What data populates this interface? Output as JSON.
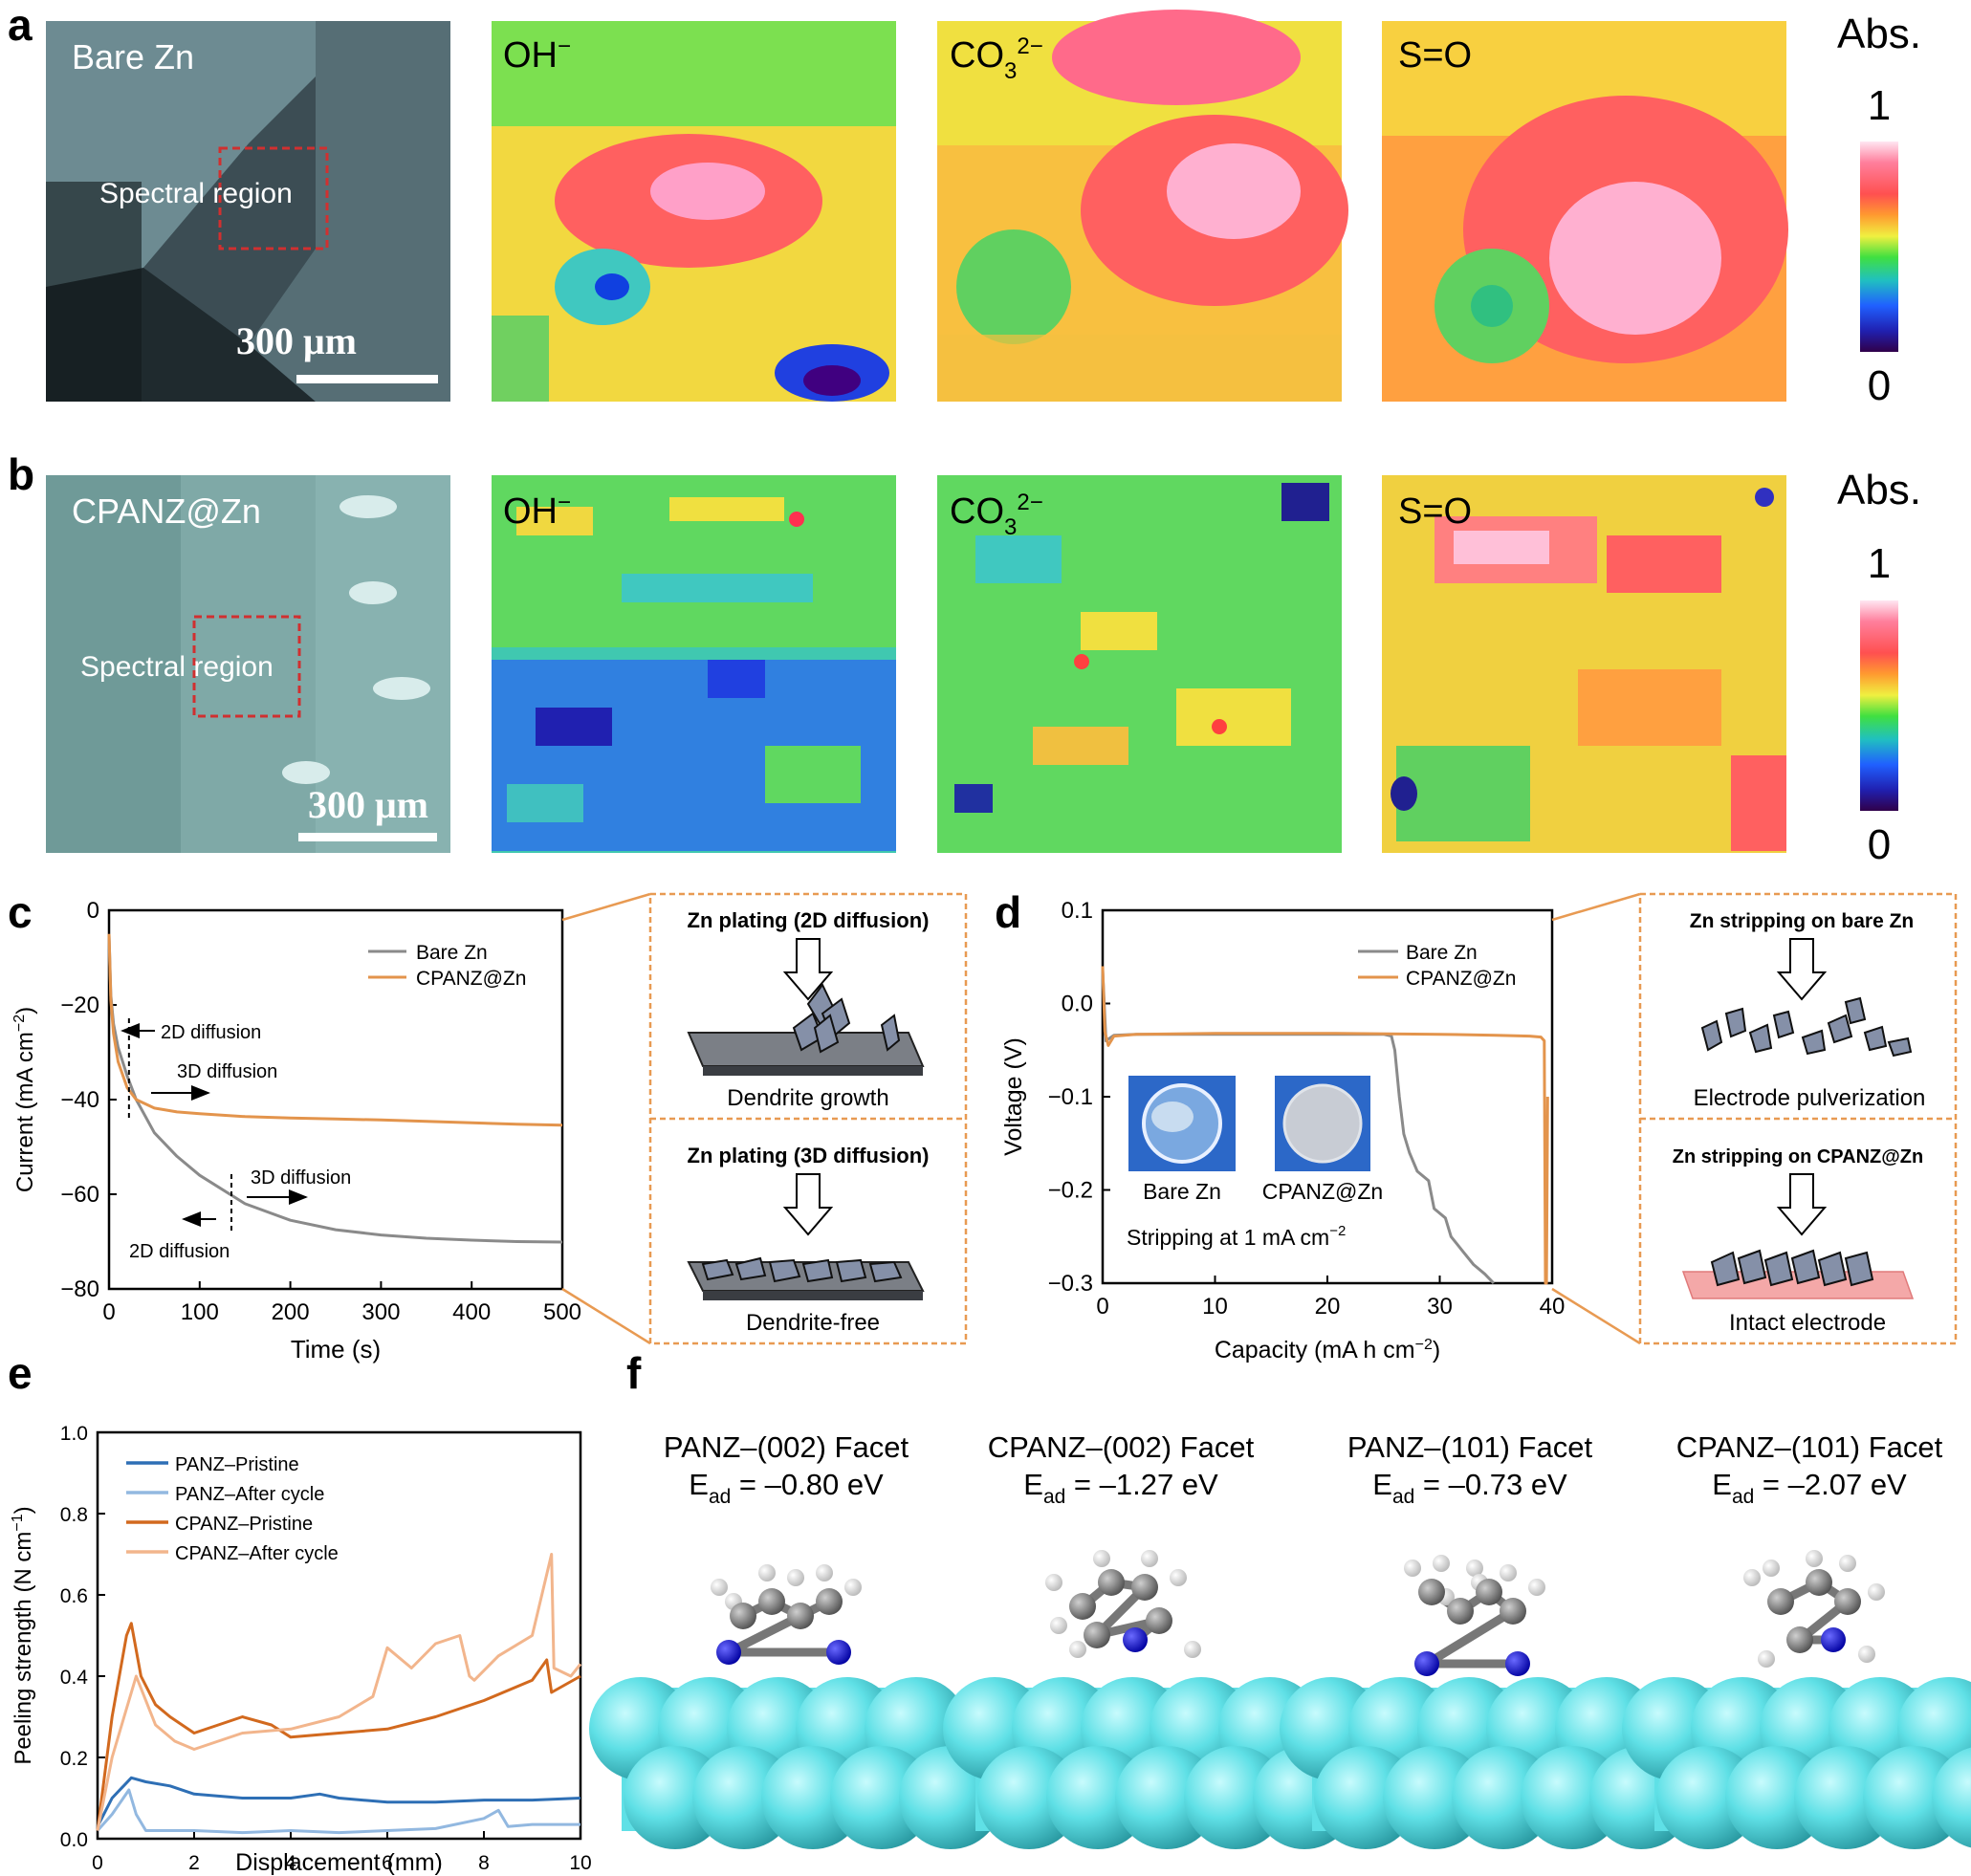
{
  "panel_letters": {
    "a": "a",
    "b": "b",
    "c": "c",
    "d": "d",
    "e": "e",
    "f": "f"
  },
  "colors": {
    "bare_line": "#8a8a8a",
    "cpanz_line": "#e3944c",
    "panz_pristine": "#2e6fb5",
    "panz_after": "#92b8e0",
    "cpanz_pristine": "#d2691e",
    "cpanz_after": "#f2b58c",
    "zn_atom": "#5fe0e6",
    "dashed_box": "#e89a52"
  },
  "panel_a": {
    "micrograph_label": "Bare Zn",
    "region_label": "Spectral region",
    "scale_bar": "300 μm",
    "maps": [
      {
        "label": "OH",
        "sup": "−",
        "sub": ""
      },
      {
        "label": "CO",
        "sub": "3",
        "sup": "2−"
      },
      {
        "label": "S=O",
        "sub": "",
        "sup": ""
      }
    ],
    "colorbar": {
      "title": "Abs.",
      "max": "1",
      "min": "0"
    }
  },
  "panel_b": {
    "micrograph_label": "CPANZ@Zn",
    "region_label": "Spectral region",
    "scale_bar": "300 μm",
    "maps": [
      {
        "label": "OH",
        "sup": "−",
        "sub": ""
      },
      {
        "label": "CO",
        "sub": "3",
        "sup": "2−"
      },
      {
        "label": "S=O",
        "sub": "",
        "sup": ""
      }
    ],
    "colorbar": {
      "title": "Abs.",
      "max": "1",
      "min": "0"
    }
  },
  "panel_c": {
    "xlabel": "Time (s)",
    "ylabel_main": "Current (mA cm",
    "ylabel_sup": "−2",
    "ylabel_end": ")",
    "xticks": [
      "0",
      "100",
      "200",
      "300",
      "400",
      "500"
    ],
    "yticks": [
      "0",
      "−20",
      "−40",
      "−60",
      "−80"
    ],
    "legend": [
      "Bare Zn",
      "CPANZ@Zn"
    ],
    "annotations": {
      "top_2d": "2D diffusion",
      "top_3d": "3D diffusion",
      "bottom_3d": "3D diffusion",
      "bottom_2d": "2D diffusion"
    },
    "schematic": {
      "top_title": "Zn plating (2D diffusion)",
      "top_caption": "Dendrite growth",
      "bottom_title": "Zn plating (3D diffusion)",
      "bottom_caption": "Dendrite-free"
    }
  },
  "panel_d": {
    "xlabel_main": "Capacity (mA h cm",
    "xlabel_sup": "−2",
    "xlabel_end": ")",
    "ylabel": "Voltage (V)",
    "xticks": [
      "0",
      "10",
      "20",
      "30",
      "40"
    ],
    "yticks": [
      "0.1",
      "0.0",
      "−0.1",
      "−0.2",
      "−0.3"
    ],
    "legend": [
      "Bare Zn",
      "CPANZ@Zn"
    ],
    "photo_labels": [
      "Bare Zn",
      "CPANZ@Zn"
    ],
    "note_main": "Stripping at 1 mA cm",
    "note_sup": "−2",
    "schematic": {
      "top_title": "Zn stripping on bare Zn",
      "top_caption": "Electrode pulverization",
      "bottom_title": "Zn stripping on CPANZ@Zn",
      "bottom_caption": "Intact electrode"
    }
  },
  "panel_e": {
    "xlabel": "Displacement (mm)",
    "ylabel_main": "Peeling strength (N cm",
    "ylabel_sup": "−1",
    "ylabel_end": ")",
    "xticks": [
      "0",
      "2",
      "4",
      "6",
      "8",
      "10"
    ],
    "yticks": [
      "0.0",
      "0.2",
      "0.4",
      "0.6",
      "0.8",
      "1.0"
    ],
    "legend": [
      "PANZ–Pristine",
      "PANZ–After cycle",
      "CPANZ–Pristine",
      "CPANZ–After cycle"
    ]
  },
  "panel_f": {
    "structures": [
      {
        "facet": "PANZ–(002) Facet",
        "e_pre": "E",
        "e_sub": "ad",
        "e_value": " = –0.80 eV"
      },
      {
        "facet": "CPANZ–(002) Facet",
        "e_pre": "E",
        "e_sub": "ad",
        "e_value": " = –1.27 eV"
      },
      {
        "facet": "PANZ–(101) Facet",
        "e_pre": "E",
        "e_sub": "ad",
        "e_value": " = –0.73 eV"
      },
      {
        "facet": "CPANZ–(101) Facet",
        "e_pre": "E",
        "e_sub": "ad",
        "e_value": " = –2.07 eV"
      }
    ]
  },
  "chart_data": [
    {
      "type": "line",
      "panel": "c",
      "xlabel": "Time (s)",
      "ylabel": "Current (mA cm−2)",
      "xlim": [
        0,
        500
      ],
      "ylim": [
        -80,
        0
      ],
      "legend_position": "top-right",
      "series": [
        {
          "name": "Bare Zn",
          "x": [
            0,
            2,
            5,
            10,
            20,
            30,
            50,
            75,
            100,
            150,
            200,
            250,
            300,
            350,
            400,
            450,
            500
          ],
          "y": [
            -5,
            -18,
            -24,
            -29,
            -35,
            -40,
            -47,
            -52,
            -56,
            -62,
            -65.5,
            -67.5,
            -68.6,
            -69.3,
            -69.7,
            -70,
            -70.1
          ]
        },
        {
          "name": "CPANZ@Zn",
          "x": [
            0,
            2,
            5,
            10,
            20,
            30,
            50,
            75,
            100,
            150,
            200,
            250,
            300,
            350,
            400,
            450,
            500
          ],
          "y": [
            -5,
            -19,
            -26,
            -32,
            -37.5,
            -40,
            -41.8,
            -42.6,
            -43,
            -43.6,
            -43.9,
            -44.1,
            -44.3,
            -44.6,
            -44.9,
            -45.2,
            -45.4
          ]
        }
      ]
    },
    {
      "type": "line",
      "panel": "d",
      "xlabel": "Capacity (mA h cm−2)",
      "ylabel": "Voltage (V)",
      "xlim": [
        0,
        40
      ],
      "ylim": [
        -0.3,
        0.1
      ],
      "legend_position": "top-right",
      "series": [
        {
          "name": "Bare Zn",
          "x": [
            0,
            0.3,
            1,
            3,
            10,
            20,
            25,
            25.7,
            26,
            26.4,
            26.8,
            27.3,
            28,
            29,
            29.5,
            30.5,
            31,
            32,
            33,
            34,
            34.8
          ],
          "y": [
            0.035,
            -0.04,
            -0.034,
            -0.033,
            -0.033,
            -0.033,
            -0.033,
            -0.035,
            -0.05,
            -0.1,
            -0.14,
            -0.16,
            -0.18,
            -0.19,
            -0.22,
            -0.23,
            -0.25,
            -0.265,
            -0.28,
            -0.29,
            -0.3
          ]
        },
        {
          "name": "CPANZ@Zn",
          "x": [
            0,
            0.2,
            0.5,
            1,
            3,
            10,
            20,
            30,
            35,
            38,
            39,
            39.3,
            39.4,
            39.5,
            39.6
          ],
          "y": [
            0.04,
            -0.03,
            -0.045,
            -0.035,
            -0.033,
            -0.032,
            -0.032,
            -0.033,
            -0.034,
            -0.035,
            -0.036,
            -0.04,
            -0.3,
            -0.3,
            -0.1
          ]
        }
      ]
    },
    {
      "type": "line",
      "panel": "e",
      "xlabel": "Displacement (mm)",
      "ylabel": "Peeling strength (N cm−1)",
      "xlim": [
        0,
        10
      ],
      "ylim": [
        0,
        1.0
      ],
      "legend_position": "top-left",
      "series": [
        {
          "name": "PANZ–Pristine",
          "x": [
            0,
            0.3,
            0.7,
            1,
            1.5,
            2,
            3,
            4,
            4.6,
            5,
            6,
            7,
            8,
            9,
            10
          ],
          "y": [
            0.03,
            0.1,
            0.15,
            0.14,
            0.13,
            0.11,
            0.1,
            0.1,
            0.11,
            0.1,
            0.09,
            0.09,
            0.095,
            0.095,
            0.1
          ]
        },
        {
          "name": "PANZ–After cycle",
          "x": [
            0,
            0.3,
            0.65,
            0.8,
            1,
            2,
            3,
            4,
            5,
            6,
            7,
            8,
            8.3,
            8.5,
            9,
            10
          ],
          "y": [
            0.02,
            0.06,
            0.12,
            0.06,
            0.02,
            0.02,
            0.015,
            0.02,
            0.015,
            0.02,
            0.025,
            0.05,
            0.07,
            0.03,
            0.035,
            0.035
          ]
        },
        {
          "name": "CPANZ–Pristine",
          "x": [
            0,
            0.3,
            0.6,
            0.7,
            0.9,
            1.2,
            1.5,
            2,
            2.5,
            3,
            3.6,
            4,
            5,
            6,
            7,
            8,
            9,
            9.3,
            9.4,
            9.7,
            10
          ],
          "y": [
            0.02,
            0.3,
            0.5,
            0.53,
            0.4,
            0.33,
            0.3,
            0.26,
            0.28,
            0.3,
            0.28,
            0.25,
            0.26,
            0.27,
            0.3,
            0.34,
            0.39,
            0.44,
            0.36,
            0.38,
            0.4
          ]
        },
        {
          "name": "CPANZ–After cycle",
          "x": [
            0,
            0.3,
            0.6,
            0.8,
            1.2,
            1.6,
            2,
            3,
            4,
            5,
            5.7,
            6,
            6.5,
            7,
            7.5,
            7.7,
            7.8,
            8.3,
            9,
            9.4,
            9.45,
            9.8,
            10
          ],
          "y": [
            0.02,
            0.2,
            0.32,
            0.4,
            0.28,
            0.24,
            0.22,
            0.26,
            0.27,
            0.3,
            0.35,
            0.47,
            0.42,
            0.48,
            0.5,
            0.4,
            0.39,
            0.45,
            0.5,
            0.7,
            0.42,
            0.4,
            0.43
          ]
        }
      ]
    }
  ]
}
